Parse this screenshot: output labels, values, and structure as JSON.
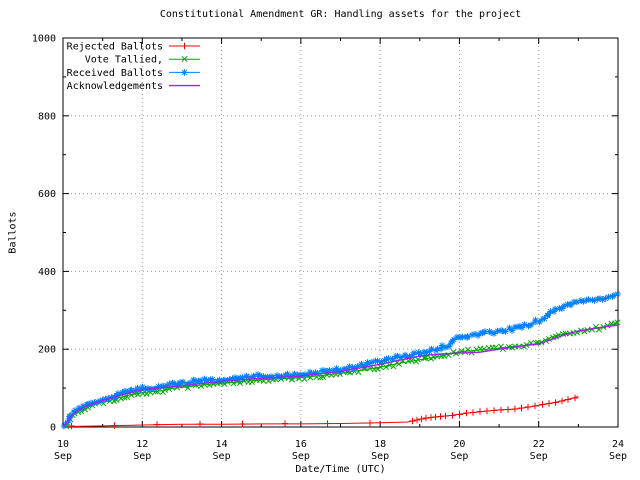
{
  "chart_data": {
    "type": "line",
    "title": "Constitutional Amendment GR: Handling assets for the project",
    "xlabel": "Date/Time (UTC)",
    "ylabel": "Ballots",
    "x_unit": "day of September (UTC)",
    "xlim": [
      10,
      24
    ],
    "ylim": [
      0,
      1000
    ],
    "month_label": "Sep",
    "x_major_tick_days": [
      10,
      12,
      14,
      16,
      18,
      20,
      22,
      24
    ],
    "x_minor_tick_days": [
      11,
      13,
      15,
      17,
      19,
      21,
      23
    ],
    "y_major_ticks": [
      0,
      200,
      400,
      600,
      800,
      1000
    ],
    "y_minor_ticks": [
      100,
      300,
      500,
      700,
      900
    ],
    "grid": "dotted gray at major ticks",
    "legend_position": "top-left-inside",
    "series": [
      {
        "name": "Rejected Ballots",
        "color": "#ff0000",
        "marker": "plus",
        "points": [
          [
            10,
            1
          ],
          [
            10.5,
            2
          ],
          [
            11,
            3
          ],
          [
            12,
            5
          ],
          [
            13,
            7
          ],
          [
            14,
            7
          ],
          [
            15,
            8
          ],
          [
            16,
            8
          ],
          [
            17,
            9
          ],
          [
            18,
            11
          ],
          [
            18.7,
            13
          ],
          [
            19,
            20
          ],
          [
            19.4,
            26
          ],
          [
            19.8,
            30
          ],
          [
            20,
            33
          ],
          [
            20.4,
            38
          ],
          [
            21,
            44
          ],
          [
            21.4,
            46
          ],
          [
            21.8,
            52
          ],
          [
            22,
            56
          ],
          [
            22.4,
            63
          ],
          [
            22.7,
            70
          ],
          [
            23,
            78
          ]
        ]
      },
      {
        "name": "Vote Tallied,",
        "color": "#00a800",
        "marker": "cross",
        "points": [
          [
            10,
            0
          ],
          [
            10.1,
            10
          ],
          [
            10.2,
            25
          ],
          [
            10.35,
            38
          ],
          [
            10.5,
            46
          ],
          [
            10.75,
            56
          ],
          [
            11,
            63
          ],
          [
            11.25,
            70
          ],
          [
            11.5,
            78
          ],
          [
            11.75,
            84
          ],
          [
            12,
            88
          ],
          [
            12.25,
            91
          ],
          [
            12.5,
            93
          ],
          [
            12.7,
            99
          ],
          [
            13,
            102
          ],
          [
            13.5,
            108
          ],
          [
            14,
            112
          ],
          [
            14.5,
            117
          ],
          [
            15,
            121
          ],
          [
            15.5,
            124
          ],
          [
            16,
            127
          ],
          [
            16.5,
            132
          ],
          [
            17,
            138
          ],
          [
            17.5,
            146
          ],
          [
            18,
            154
          ],
          [
            18.5,
            164
          ],
          [
            19,
            173
          ],
          [
            19.5,
            182
          ],
          [
            20,
            193
          ],
          [
            20.5,
            198
          ],
          [
            21,
            203
          ],
          [
            21.5,
            208
          ],
          [
            22,
            215
          ],
          [
            22.2,
            226
          ],
          [
            22.4,
            234
          ],
          [
            22.6,
            238
          ],
          [
            23,
            246
          ],
          [
            23.3,
            251
          ],
          [
            23.6,
            256
          ],
          [
            24,
            268
          ]
        ]
      },
      {
        "name": "Received Ballots",
        "color": "#0080ff",
        "marker": "asterisk",
        "points": [
          [
            10,
            0
          ],
          [
            10.1,
            14
          ],
          [
            10.2,
            30
          ],
          [
            10.35,
            44
          ],
          [
            10.5,
            53
          ],
          [
            10.75,
            63
          ],
          [
            11,
            71
          ],
          [
            11.25,
            79
          ],
          [
            11.5,
            87
          ],
          [
            11.75,
            94
          ],
          [
            12,
            99
          ],
          [
            12.25,
            102
          ],
          [
            12.5,
            104
          ],
          [
            12.7,
            110
          ],
          [
            13,
            113
          ],
          [
            13.5,
            119
          ],
          [
            14,
            123
          ],
          [
            14.5,
            128
          ],
          [
            15,
            131
          ],
          [
            15.5,
            133
          ],
          [
            16,
            136
          ],
          [
            16.5,
            142
          ],
          [
            17,
            148
          ],
          [
            17.5,
            158
          ],
          [
            18,
            170
          ],
          [
            18.5,
            180
          ],
          [
            19,
            190
          ],
          [
            19.5,
            202
          ],
          [
            19.7,
            210
          ],
          [
            19.85,
            222
          ],
          [
            20,
            230
          ],
          [
            20.3,
            238
          ],
          [
            20.7,
            241
          ],
          [
            21,
            246
          ],
          [
            21.5,
            255
          ],
          [
            22,
            272
          ],
          [
            22.3,
            292
          ],
          [
            22.5,
            305
          ],
          [
            22.7,
            314
          ],
          [
            23,
            320
          ],
          [
            23.3,
            324
          ],
          [
            23.6,
            330
          ],
          [
            24,
            344
          ]
        ]
      },
      {
        "name": "Acknowledgements",
        "color": "#a020f0",
        "marker": "none",
        "points": [
          [
            10,
            0
          ],
          [
            10.15,
            20
          ],
          [
            10.35,
            42
          ],
          [
            10.5,
            50
          ],
          [
            10.75,
            60
          ],
          [
            11,
            68
          ],
          [
            11.5,
            83
          ],
          [
            12,
            96
          ],
          [
            12.5,
            101
          ],
          [
            13,
            106
          ],
          [
            13.5,
            112
          ],
          [
            14,
            117
          ],
          [
            14.5,
            122
          ],
          [
            15,
            125
          ],
          [
            15.5,
            128
          ],
          [
            16,
            131
          ],
          [
            16.5,
            137
          ],
          [
            17,
            143
          ],
          [
            17.5,
            152
          ],
          [
            18,
            161
          ],
          [
            18.5,
            172
          ],
          [
            19,
            182
          ],
          [
            19.3,
            186
          ],
          [
            19.6,
            188
          ],
          [
            20,
            190
          ],
          [
            20.5,
            192
          ],
          [
            21,
            200
          ],
          [
            21.5,
            207
          ],
          [
            22,
            214
          ],
          [
            22.3,
            224
          ],
          [
            22.6,
            235
          ],
          [
            23,
            247
          ],
          [
            23.5,
            255
          ],
          [
            24,
            262
          ]
        ]
      }
    ]
  }
}
